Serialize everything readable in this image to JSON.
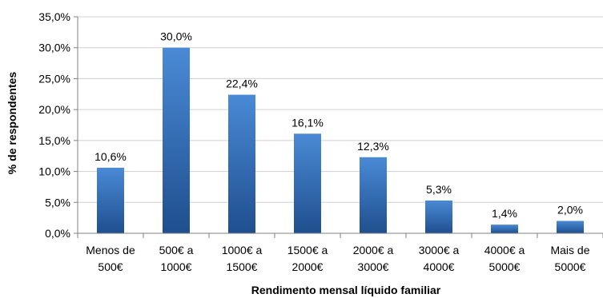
{
  "chart_data": {
    "type": "bar",
    "title": "",
    "xlabel": "Rendimento mensal líquido familiar",
    "ylabel": "% de respondentes",
    "ylim": [
      0,
      35
    ],
    "y_ticks": [
      0,
      5,
      10,
      15,
      20,
      25,
      30,
      35
    ],
    "y_tick_labels": [
      "0,0%",
      "5,0%",
      "10,0%",
      "15,0%",
      "20,0%",
      "25,0%",
      "30,0%",
      "35,0%"
    ],
    "grid": true,
    "legend": "none",
    "categories": [
      [
        "Menos de",
        "500€"
      ],
      [
        "500€ a",
        "1000€"
      ],
      [
        "1000€ a",
        "1500€"
      ],
      [
        "1500€ a",
        "2000€"
      ],
      [
        "2000€ a",
        "3000€"
      ],
      [
        "3000€ a",
        "4000€"
      ],
      [
        "4000€ a",
        "5000€"
      ],
      [
        "Mais de",
        "5000€"
      ]
    ],
    "values": [
      10.6,
      30.0,
      22.4,
      16.1,
      12.3,
      5.3,
      1.4,
      2.0
    ],
    "data_labels": [
      "10,6%",
      "30,0%",
      "22,4%",
      "16,1%",
      "12,3%",
      "5,3%",
      "1,4%",
      "2,0%"
    ],
    "colors": {
      "bar_top": "#4a8ad6",
      "bar_bottom": "#1f4f8e",
      "grid": "#d0d0d0",
      "axis": "#808080"
    }
  }
}
